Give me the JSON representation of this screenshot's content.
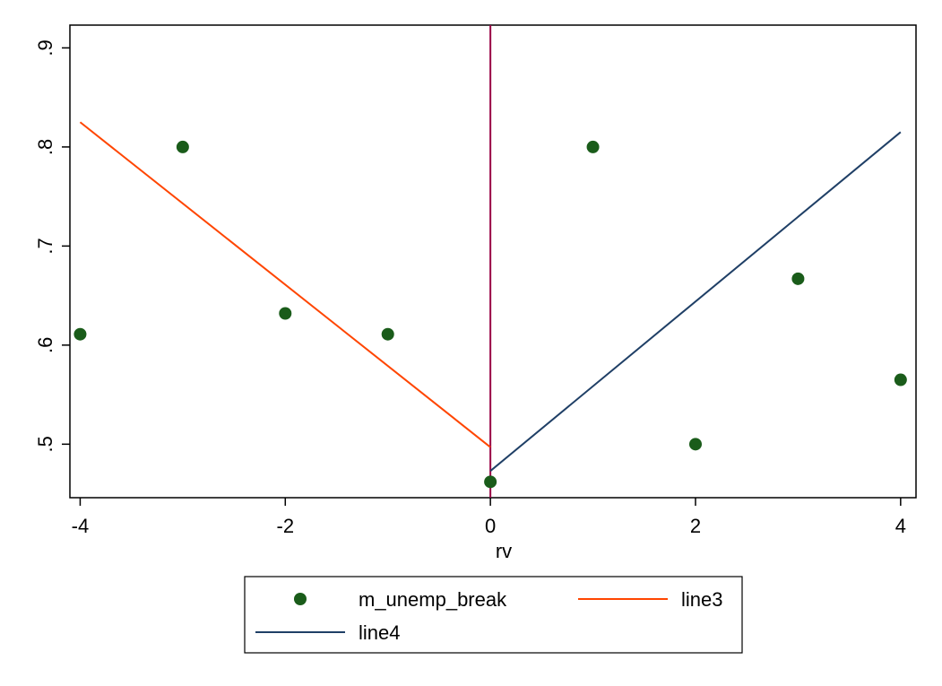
{
  "chart_data": {
    "type": "scatter",
    "xlabel": "rv",
    "ylabel": "",
    "xlim": [
      -4.1,
      4.15
    ],
    "ylim": [
      0.446,
      0.923
    ],
    "xticks": [
      -4,
      -2,
      0,
      2,
      4
    ],
    "xtick_labels": [
      "-4",
      "-2",
      "0",
      "2",
      "4"
    ],
    "yticks": [
      0.5,
      0.6,
      0.7,
      0.8,
      0.9
    ],
    "ytick_labels": [
      ".5",
      ".6",
      ".7",
      ".8",
      ".9"
    ],
    "grid": false,
    "legend_position": "bottom",
    "series": [
      {
        "name": "m_unemp_break",
        "kind": "scatter",
        "color": "#1a5c1a",
        "x": [
          -4,
          -3,
          -2,
          -1,
          0,
          1,
          2,
          3,
          4
        ],
        "y": [
          0.611,
          0.8,
          0.632,
          0.611,
          0.462,
          0.8,
          0.5,
          0.667,
          0.565
        ]
      },
      {
        "name": "line3",
        "kind": "line",
        "color": "#ff4500",
        "x": [
          -4,
          0
        ],
        "y": [
          0.825,
          0.497
        ]
      },
      {
        "name": "line4",
        "kind": "line",
        "color": "#1f3f66",
        "x": [
          0,
          4
        ],
        "y": [
          0.473,
          0.815
        ]
      }
    ],
    "vline": {
      "x": 0,
      "color": "#990045"
    }
  }
}
